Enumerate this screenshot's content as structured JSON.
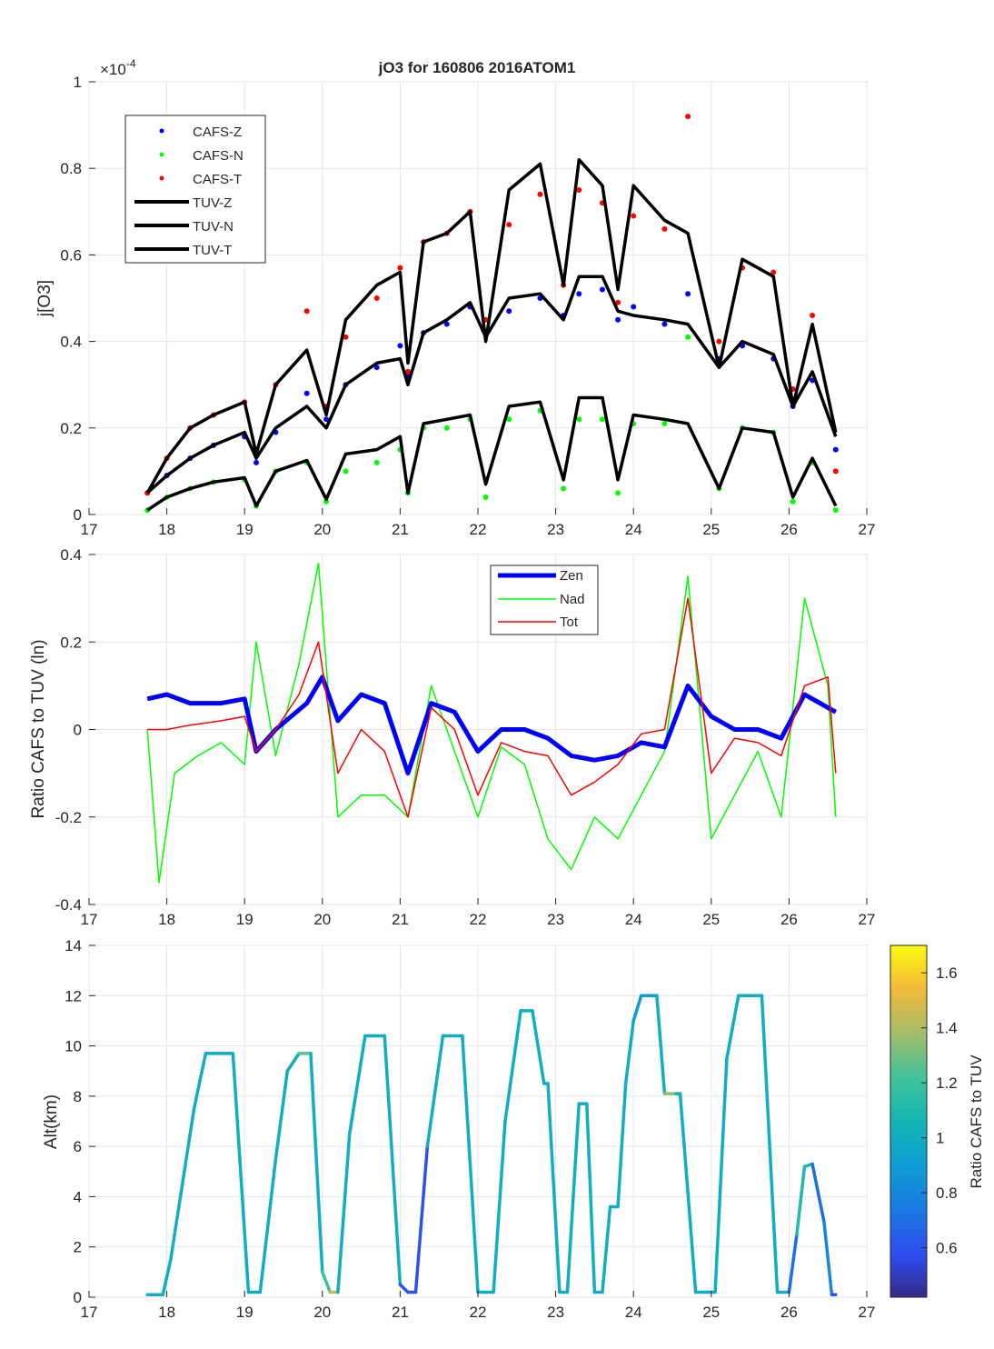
{
  "colors": {
    "zen": "#0000ff",
    "nad": "#00ff00",
    "tot": "#ff0000",
    "tuv": "#000000",
    "grid": "#e6e6e6",
    "axis": "#262626"
  },
  "chart_data": [
    {
      "type": "scatter",
      "title": "jO3 for 160806 2016ATOM1",
      "xlabel": "",
      "ylabel": "j[O3]",
      "exponent_label": "×10",
      "exponent_power": "-4",
      "xlim": [
        17,
        27
      ],
      "ylim": [
        0,
        1
      ],
      "xticks": [
        "17",
        "18",
        "19",
        "20",
        "21",
        "22",
        "23",
        "24",
        "25",
        "26",
        "27"
      ],
      "yticks": [
        "0",
        "0.2",
        "0.4",
        "0.6",
        "0.8",
        "1"
      ],
      "legend_position": "top-left",
      "legend": [
        "CAFS-Z",
        "CAFS-N",
        "CAFS-T",
        "TUV-Z",
        "TUV-N",
        "TUV-T"
      ],
      "series": [
        {
          "name": "CAFS-Z",
          "style": "markers",
          "x": [
            17.75,
            18.0,
            18.3,
            18.6,
            19.0,
            19.15,
            19.4,
            19.8,
            20.05,
            20.3,
            20.7,
            21.0,
            21.1,
            21.3,
            21.6,
            21.9,
            22.1,
            22.4,
            22.8,
            23.1,
            23.3,
            23.6,
            23.8,
            24.0,
            24.4,
            24.7,
            25.1,
            25.4,
            25.8,
            26.05,
            26.3,
            26.6
          ],
          "y": [
            0.05,
            0.09,
            0.13,
            0.16,
            0.18,
            0.12,
            0.19,
            0.28,
            0.22,
            0.3,
            0.34,
            0.39,
            0.32,
            0.42,
            0.44,
            0.48,
            0.42,
            0.47,
            0.5,
            0.46,
            0.51,
            0.52,
            0.45,
            0.48,
            0.44,
            0.51,
            0.36,
            0.39,
            0.36,
            0.25,
            0.31,
            0.15
          ]
        },
        {
          "name": "CAFS-N",
          "style": "markers",
          "x": [
            17.75,
            18.0,
            18.3,
            18.6,
            19.0,
            19.15,
            19.4,
            19.8,
            20.05,
            20.3,
            20.7,
            21.0,
            21.1,
            21.3,
            21.6,
            21.9,
            22.1,
            22.4,
            22.8,
            23.1,
            23.3,
            23.6,
            23.8,
            24.0,
            24.4,
            24.7,
            25.1,
            25.4,
            25.8,
            26.05,
            26.3,
            26.6
          ],
          "y": [
            0.01,
            0.04,
            0.06,
            0.075,
            0.08,
            0.02,
            0.1,
            0.12,
            0.03,
            0.1,
            0.12,
            0.15,
            0.05,
            0.2,
            0.2,
            0.22,
            0.04,
            0.22,
            0.24,
            0.06,
            0.22,
            0.22,
            0.05,
            0.21,
            0.21,
            0.41,
            0.06,
            0.2,
            0.19,
            0.03,
            0.12,
            0.01
          ]
        },
        {
          "name": "CAFS-T",
          "style": "markers",
          "x": [
            17.75,
            18.0,
            18.3,
            18.6,
            19.0,
            19.15,
            19.4,
            19.8,
            20.05,
            20.3,
            20.7,
            21.0,
            21.1,
            21.3,
            21.6,
            21.9,
            22.1,
            22.4,
            22.8,
            23.1,
            23.3,
            23.6,
            23.8,
            24.0,
            24.4,
            24.7,
            25.1,
            25.4,
            25.8,
            26.05,
            26.3,
            26.6
          ],
          "y": [
            0.05,
            0.13,
            0.2,
            0.23,
            0.26,
            0.14,
            0.3,
            0.47,
            0.25,
            0.41,
            0.5,
            0.57,
            0.33,
            0.63,
            0.65,
            0.7,
            0.45,
            0.67,
            0.74,
            0.53,
            0.75,
            0.72,
            0.49,
            0.69,
            0.66,
            0.92,
            0.4,
            0.57,
            0.56,
            0.29,
            0.46,
            0.1
          ]
        },
        {
          "name": "TUV-Z",
          "style": "line",
          "x": [
            17.75,
            18.0,
            18.3,
            18.6,
            19.0,
            19.15,
            19.4,
            19.8,
            20.05,
            20.3,
            20.7,
            21.0,
            21.1,
            21.3,
            21.6,
            21.9,
            22.1,
            22.4,
            22.8,
            23.1,
            23.3,
            23.6,
            23.8,
            24.0,
            24.4,
            24.7,
            25.1,
            25.4,
            25.8,
            26.05,
            26.3,
            26.6
          ],
          "y": [
            0.05,
            0.09,
            0.13,
            0.16,
            0.19,
            0.13,
            0.2,
            0.25,
            0.2,
            0.3,
            0.35,
            0.36,
            0.3,
            0.42,
            0.45,
            0.49,
            0.41,
            0.5,
            0.51,
            0.45,
            0.55,
            0.55,
            0.47,
            0.46,
            0.45,
            0.44,
            0.34,
            0.4,
            0.37,
            0.25,
            0.33,
            0.18
          ]
        },
        {
          "name": "TUV-N",
          "style": "line",
          "x": [
            17.75,
            18.0,
            18.3,
            18.6,
            19.0,
            19.15,
            19.4,
            19.8,
            20.05,
            20.3,
            20.7,
            21.0,
            21.1,
            21.3,
            21.6,
            21.9,
            22.1,
            22.4,
            22.8,
            23.1,
            23.3,
            23.6,
            23.8,
            24.0,
            24.4,
            24.7,
            25.1,
            25.4,
            25.8,
            26.05,
            26.3,
            26.6
          ],
          "y": [
            0.01,
            0.04,
            0.06,
            0.075,
            0.085,
            0.02,
            0.1,
            0.125,
            0.035,
            0.14,
            0.15,
            0.18,
            0.05,
            0.21,
            0.22,
            0.23,
            0.07,
            0.25,
            0.26,
            0.08,
            0.27,
            0.27,
            0.08,
            0.23,
            0.22,
            0.21,
            0.06,
            0.2,
            0.19,
            0.04,
            0.13,
            0.02
          ]
        },
        {
          "name": "TUV-T",
          "style": "line",
          "x": [
            17.75,
            18.0,
            18.3,
            18.6,
            19.0,
            19.15,
            19.4,
            19.8,
            20.05,
            20.3,
            20.7,
            21.0,
            21.1,
            21.3,
            21.6,
            21.9,
            22.1,
            22.4,
            22.8,
            23.1,
            23.3,
            23.6,
            23.8,
            24.0,
            24.4,
            24.7,
            25.1,
            25.4,
            25.8,
            26.05,
            26.3,
            26.6
          ],
          "y": [
            0.05,
            0.13,
            0.2,
            0.23,
            0.26,
            0.14,
            0.3,
            0.38,
            0.23,
            0.45,
            0.53,
            0.56,
            0.35,
            0.63,
            0.65,
            0.7,
            0.4,
            0.75,
            0.81,
            0.53,
            0.82,
            0.76,
            0.52,
            0.76,
            0.68,
            0.65,
            0.34,
            0.59,
            0.55,
            0.25,
            0.44,
            0.19
          ]
        }
      ]
    },
    {
      "type": "line",
      "title": "",
      "xlabel": "",
      "ylabel": "Ratio CAFS to TUV (ln)",
      "xlim": [
        17,
        27
      ],
      "ylim": [
        -0.4,
        0.4
      ],
      "xticks": [
        "17",
        "18",
        "19",
        "20",
        "21",
        "22",
        "23",
        "24",
        "25",
        "26",
        "27"
      ],
      "yticks": [
        "-0.4",
        "-0.2",
        "0",
        "0.2",
        "0.4"
      ],
      "legend_position": "top-center",
      "legend": [
        "Zen",
        "Nad",
        "Tot"
      ],
      "series": [
        {
          "name": "Zen",
          "x": [
            17.75,
            18.0,
            18.3,
            18.7,
            19.0,
            19.15,
            19.4,
            19.8,
            20.0,
            20.2,
            20.5,
            20.8,
            21.1,
            21.4,
            21.7,
            22.0,
            22.3,
            22.6,
            22.9,
            23.2,
            23.5,
            23.8,
            24.1,
            24.4,
            24.7,
            25.0,
            25.3,
            25.6,
            25.9,
            26.2,
            26.5,
            26.6
          ],
          "y": [
            0.07,
            0.08,
            0.06,
            0.06,
            0.07,
            -0.05,
            0.0,
            0.06,
            0.12,
            0.02,
            0.08,
            0.06,
            -0.1,
            0.06,
            0.04,
            -0.05,
            0.0,
            0.0,
            -0.02,
            -0.06,
            -0.07,
            -0.06,
            -0.03,
            -0.04,
            0.1,
            0.03,
            0.0,
            0.0,
            -0.02,
            0.08,
            0.05,
            0.04
          ]
        },
        {
          "name": "Nad",
          "x": [
            17.75,
            17.9,
            18.1,
            18.4,
            18.7,
            19.0,
            19.15,
            19.4,
            19.7,
            19.95,
            20.2,
            20.5,
            20.8,
            21.1,
            21.4,
            21.7,
            22.0,
            22.3,
            22.6,
            22.9,
            23.2,
            23.5,
            23.8,
            24.1,
            24.4,
            24.7,
            25.0,
            25.3,
            25.6,
            25.9,
            26.2,
            26.5,
            26.6
          ],
          "y": [
            0.0,
            -0.35,
            -0.1,
            -0.06,
            -0.03,
            -0.08,
            0.2,
            -0.06,
            0.15,
            0.38,
            -0.2,
            -0.15,
            -0.15,
            -0.2,
            0.1,
            -0.05,
            -0.2,
            -0.04,
            -0.08,
            -0.25,
            -0.32,
            -0.2,
            -0.25,
            -0.15,
            -0.05,
            0.35,
            -0.25,
            -0.15,
            -0.05,
            -0.2,
            0.3,
            0.1,
            -0.2
          ]
        },
        {
          "name": "Tot",
          "x": [
            17.75,
            18.0,
            18.3,
            18.7,
            19.0,
            19.15,
            19.4,
            19.7,
            19.95,
            20.2,
            20.5,
            20.8,
            21.1,
            21.4,
            21.7,
            22.0,
            22.3,
            22.6,
            22.9,
            23.2,
            23.5,
            23.8,
            24.1,
            24.4,
            24.7,
            25.0,
            25.3,
            25.6,
            25.9,
            26.2,
            26.5,
            26.6
          ],
          "y": [
            0.0,
            0.0,
            0.01,
            0.02,
            0.03,
            -0.05,
            0.0,
            0.08,
            0.2,
            -0.1,
            0.0,
            -0.05,
            -0.2,
            0.05,
            0.0,
            -0.15,
            -0.03,
            -0.05,
            -0.06,
            -0.15,
            -0.12,
            -0.08,
            -0.01,
            0.0,
            0.3,
            -0.1,
            -0.02,
            -0.03,
            -0.06,
            0.1,
            0.12,
            -0.1
          ]
        }
      ]
    },
    {
      "type": "line",
      "title": "",
      "xlabel": "",
      "ylabel": "Alt(km)",
      "xlim": [
        17,
        27
      ],
      "ylim": [
        0,
        14
      ],
      "xticks": [
        "17",
        "18",
        "19",
        "20",
        "21",
        "22",
        "23",
        "24",
        "25",
        "26",
        "27"
      ],
      "yticks": [
        "0",
        "2",
        "4",
        "6",
        "8",
        "10",
        "12",
        "14"
      ],
      "colorbar_label": "Ratio CAFS to TUV",
      "colorbar_range": [
        0.42,
        1.7
      ],
      "colorbar_ticks": [
        "0.6",
        "0.8",
        "1",
        "1.2",
        "1.4",
        "1.6"
      ],
      "series": [
        {
          "name": "Alt",
          "x": [
            17.75,
            17.95,
            18.05,
            18.2,
            18.35,
            18.5,
            18.85,
            19.05,
            19.2,
            19.4,
            19.55,
            19.7,
            19.85,
            20.0,
            20.1,
            20.2,
            20.35,
            20.55,
            20.65,
            20.8,
            21.0,
            21.1,
            21.2,
            21.35,
            21.55,
            21.65,
            21.8,
            22.0,
            22.1,
            22.2,
            22.35,
            22.55,
            22.7,
            22.85,
            22.9,
            23.05,
            23.15,
            23.3,
            23.4,
            23.5,
            23.6,
            23.7,
            23.8,
            23.9,
            24.0,
            24.1,
            24.3,
            24.4,
            24.55,
            24.6,
            24.8,
            24.95,
            25.05,
            25.2,
            25.35,
            25.5,
            25.65,
            25.85,
            26.0,
            26.1,
            26.2,
            26.3,
            26.45,
            26.55,
            26.6
          ],
          "y": [
            0.1,
            0.1,
            1.5,
            4.5,
            7.5,
            9.7,
            9.7,
            0.2,
            0.2,
            5.5,
            9.0,
            9.7,
            9.7,
            1.0,
            0.2,
            0.2,
            6.5,
            10.4,
            10.4,
            10.4,
            0.5,
            0.2,
            0.2,
            6.0,
            10.4,
            10.4,
            10.4,
            0.2,
            0.2,
            0.2,
            7.0,
            11.4,
            11.4,
            8.5,
            8.5,
            0.2,
            0.2,
            7.7,
            7.7,
            0.2,
            0.2,
            3.6,
            3.6,
            8.5,
            11.0,
            12.0,
            12.0,
            8.1,
            8.1,
            8.1,
            0.2,
            0.2,
            0.2,
            9.5,
            12.0,
            12.0,
            12.0,
            0.2,
            0.2,
            2.5,
            5.2,
            5.3,
            3.0,
            0.1,
            0.1
          ],
          "ratio": [
            1.0,
            1.0,
            1.0,
            1.0,
            1.0,
            1.0,
            1.0,
            1.0,
            1.0,
            1.0,
            1.0,
            1.25,
            1.0,
            1.2,
            1.45,
            1.0,
            1.0,
            1.0,
            1.0,
            1.0,
            0.6,
            0.6,
            0.6,
            1.0,
            1.0,
            1.0,
            1.0,
            1.0,
            1.0,
            1.0,
            1.0,
            1.0,
            1.0,
            1.0,
            1.0,
            1.0,
            1.0,
            1.0,
            1.0,
            1.0,
            1.0,
            1.0,
            1.0,
            1.0,
            0.9,
            0.9,
            1.0,
            1.35,
            1.0,
            1.0,
            1.0,
            1.0,
            1.0,
            1.0,
            1.0,
            1.0,
            1.0,
            1.0,
            0.7,
            1.1,
            1.1,
            0.7,
            0.8,
            0.6,
            0.6
          ]
        }
      ]
    }
  ]
}
